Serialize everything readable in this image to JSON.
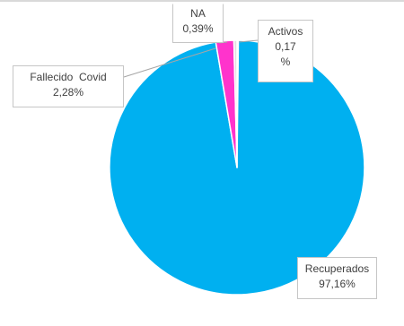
{
  "chart_data": {
    "type": "pie",
    "slices": [
      {
        "label": "Activos",
        "value": 0.17,
        "display_value": "0,17",
        "display_unit": "%",
        "color": "#a5a5a5"
      },
      {
        "label": "Recuperados",
        "value": 97.16,
        "display_value": "97,16%",
        "color": "#00b0f0"
      },
      {
        "label": "Fallecido  Covid",
        "value": 2.28,
        "display_value": "2,28%",
        "color": "#ff33cc"
      },
      {
        "label": "NA",
        "value": 0.39,
        "display_value": "0,39%",
        "color": "#e0e0e0"
      }
    ],
    "start_angle_deg": 0,
    "direction": "clockwise",
    "labels_position": "outside with leader lines",
    "legend": "none",
    "slice_border_color": "#ffffff"
  }
}
